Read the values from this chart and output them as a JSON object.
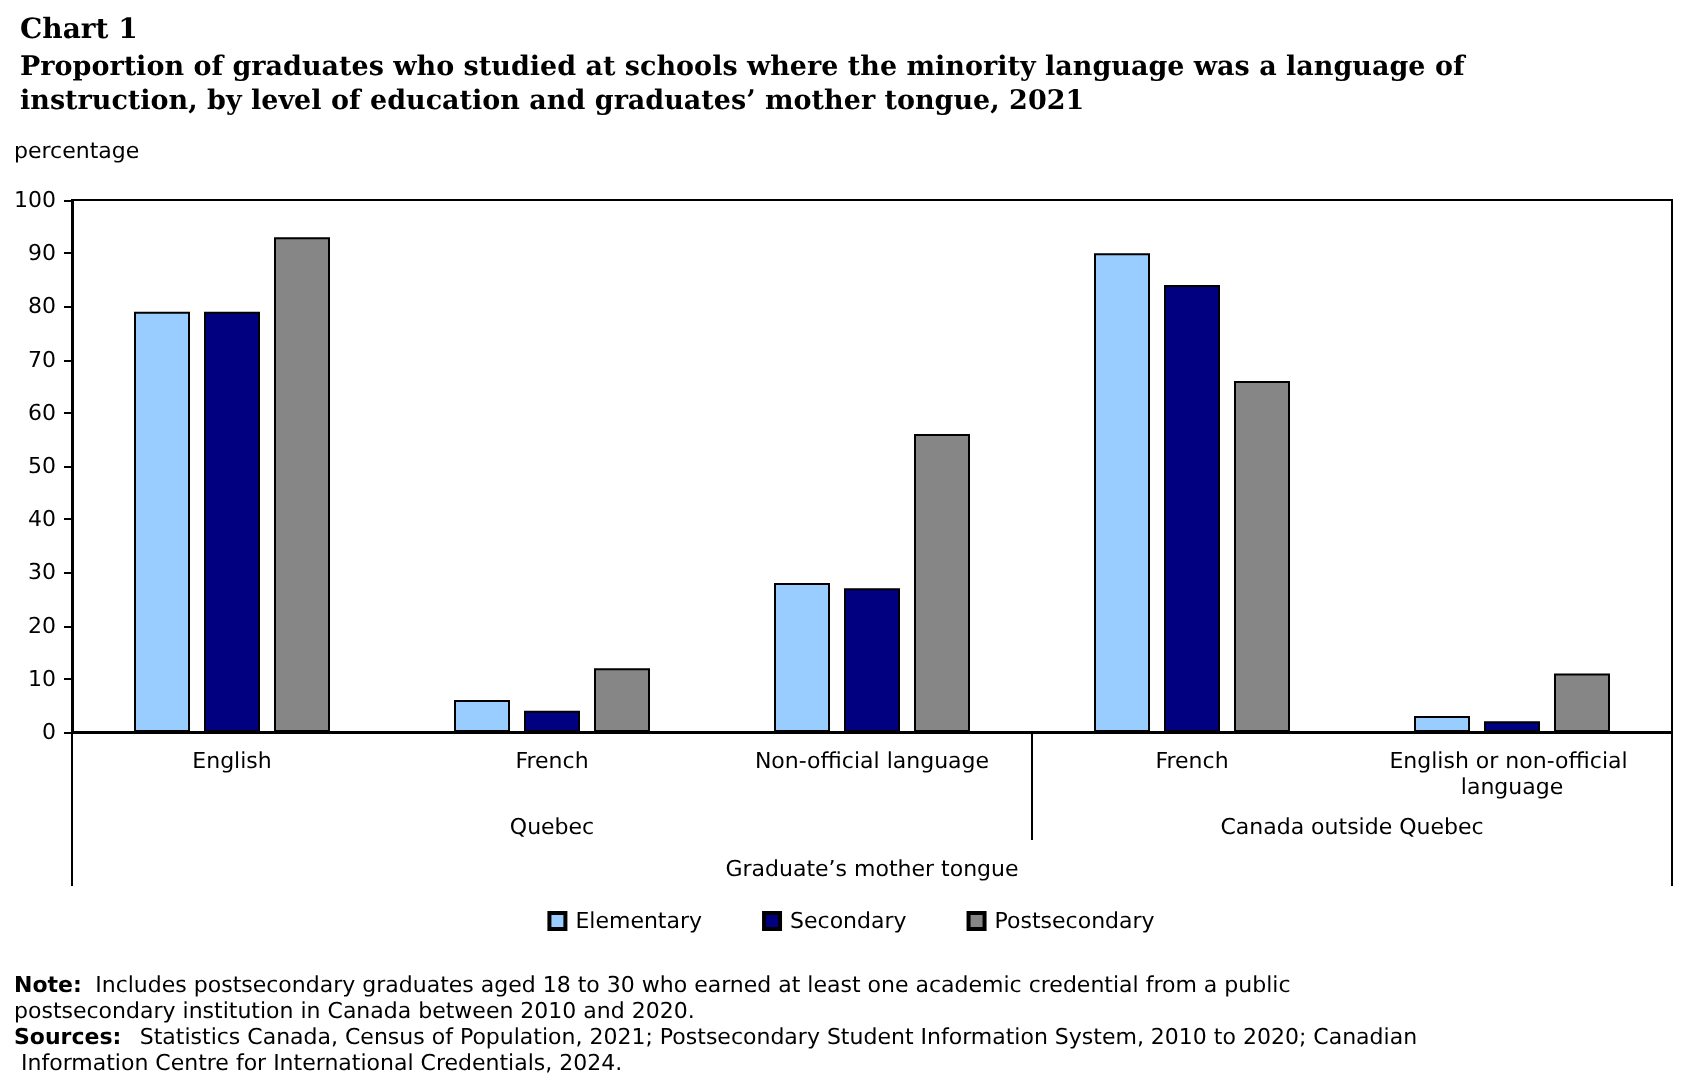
{
  "chart_data": {
    "type": "bar",
    "title": "Chart 1",
    "subtitle": "Proportion of graduates who studied at schools where the minority language was a language of instruction, by level of education and graduates’ mother tongue, 2021",
    "ylabel": "percentage",
    "xlabel": "Graduate’s mother tongue",
    "categories": [
      "English",
      "French",
      "Non-official language",
      "French",
      "English or non-official language"
    ],
    "series": [
      {
        "name": "Elementary",
        "color": "#99ccff",
        "values": [
          79,
          6,
          28,
          90,
          3
        ]
      },
      {
        "name": "Secondary",
        "color": "#000080",
        "values": [
          79,
          4,
          27,
          84,
          2
        ]
      },
      {
        "name": "Postsecondary",
        "color": "#868686",
        "values": [
          93,
          12,
          56,
          66,
          11
        ]
      }
    ],
    "ylim": [
      0,
      100
    ],
    "yticks": [
      0,
      10,
      20,
      30,
      40,
      50,
      60,
      70,
      80,
      90,
      100
    ],
    "grid": false,
    "legend": "bottom",
    "annotations": [
      "Quebec",
      "Canada outside Quebec",
      "Note: Includes postsecondary graduates aged 18 to 30 who earned at least one academic credential from a public postsecondary institution in Canada between 2010 and 2020.",
      "Sources: Statistics Canada, Census of Population, 2021; Postsecondary Student Information System, 2010 to 2020; Canadian Information Centre for International Credentials, 2024."
    ]
  }
}
